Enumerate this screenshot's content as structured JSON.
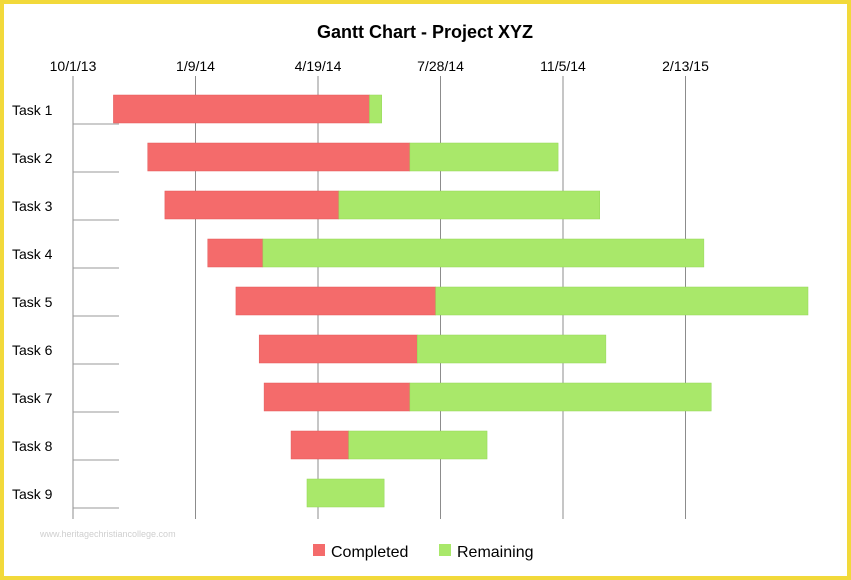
{
  "watermark": "www.heritagechristiancollege.com",
  "chart_data": {
    "type": "bar",
    "orientation": "horizontal-stacked-gantt",
    "title": "Gantt Chart - Project XYZ",
    "xlabel": "",
    "ylabel": "",
    "x_axis": {
      "type": "date",
      "position": "top",
      "ticks": [
        "10/1/13",
        "1/9/14",
        "4/19/14",
        "7/28/14",
        "11/5/14",
        "2/13/15"
      ],
      "range": [
        "2013-10-01",
        "2015-05-24"
      ]
    },
    "grid": "vertical",
    "legend": {
      "placement": "bottom"
    },
    "colors": {
      "Completed": "#f46b6b",
      "Remaining": "#a9e86a",
      "frame": "#f2d93a"
    },
    "categories": [
      "Task 1",
      "Task 2",
      "Task 3",
      "Task 4",
      "Task 5",
      "Task 6",
      "Task 7",
      "Task 8",
      "Task 9"
    ],
    "tasks": [
      {
        "name": "Task 1",
        "start": "2013-11-03",
        "completed_end": "2014-05-31",
        "end": "2014-06-10"
      },
      {
        "name": "Task 2",
        "start": "2013-12-01",
        "completed_end": "2014-07-03",
        "end": "2014-11-01"
      },
      {
        "name": "Task 3",
        "start": "2013-12-15",
        "completed_end": "2014-05-06",
        "end": "2014-12-05"
      },
      {
        "name": "Task 4",
        "start": "2014-01-19",
        "completed_end": "2014-03-05",
        "end": "2015-02-28"
      },
      {
        "name": "Task 5",
        "start": "2014-02-11",
        "completed_end": "2014-07-24",
        "end": "2015-05-24"
      },
      {
        "name": "Task 6",
        "start": "2014-03-02",
        "completed_end": "2014-07-09",
        "end": "2014-12-10"
      },
      {
        "name": "Task 7",
        "start": "2014-03-06",
        "completed_end": "2014-07-03",
        "end": "2015-03-06"
      },
      {
        "name": "Task 8",
        "start": "2014-03-28",
        "completed_end": "2014-05-14",
        "end": "2014-09-04"
      },
      {
        "name": "Task 9",
        "start": "2014-04-10",
        "completed_end": "2014-04-10",
        "end": "2014-06-12"
      }
    ],
    "series": [
      {
        "name": "Completed"
      },
      {
        "name": "Remaining"
      }
    ]
  }
}
